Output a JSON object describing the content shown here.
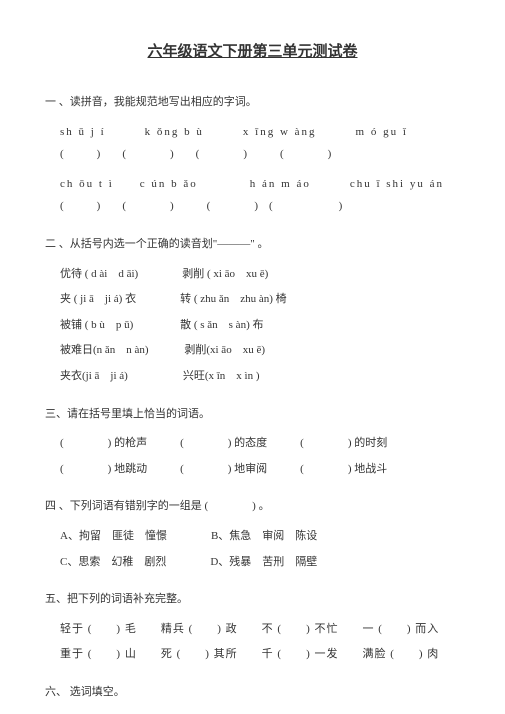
{
  "title": "六年级语文下册第三单元测试卷",
  "q1": {
    "header": "一 、读拼音，我能规范地写出相应的字词。",
    "row1_pinyin": "sh ū j í　　　k ǒng  b ù　　　x īng w àng　　　m ó  gu ǐ",
    "row1_paren": "(　　　)　　(　　　　)　　(　　　　)　　　(　　　　)",
    "row2_pinyin": "ch ōu  t ì　　c ún  b ǎo　　　　h án  m áo　　　chu ī shi yu án",
    "row2_paren": "(　　　)　　(　　　　)　　　(　　　　)　(　　　　　　)"
  },
  "q2": {
    "header": "二 、从括号内选一个正确的读音划\"———\" 。",
    "items": [
      "优待  ( d ài　d āi)　　　　剥削  ( xi āo　xu ē)",
      "夹 ( ji ā　ji á)  衣　　　　转 ( zhu ǎn　zhu àn)  椅",
      "被铺  ( b ù　p ū)　　　　 散 ( s ǎn　s àn)  布",
      "被难日(n ǎn　n àn)　　　 剥削(xi āo　xu ē)",
      "夹衣(ji ā　ji á)　　　　　兴旺(x īn　x ìn  )"
    ]
  },
  "q3": {
    "header": "三、请在括号里填上恰当的词语。",
    "rows": [
      "(　　　　)  的枪声　　　(　　　　)  的态度　　　(　　　　)  的时刻",
      "(　　　　)  地跳动　　　(　　　　)  地审阅　　　(　　　　)  地战斗"
    ]
  },
  "q4": {
    "header": "四 、下列词语有错别字的一组是  (　　　　)  。",
    "options": [
      "A、拘留　匪徒　憧憬　　　　B、焦急　审阅　陈设",
      "C、思索　幻稚　剧烈　　　　D、残暴　苦刑　隔壁"
    ]
  },
  "q5": {
    "header": "五、把下列的词语补充完整。",
    "rows": [
      "轻于  (　　)  毛　　精兵  (　　)  政　　不  (　　)  不忙　　一  (　　)  而入",
      "重于  (　　)  山　　死  (　　)  其所　　千  (　　)  一发　　满脸  (　　)  肉"
    ]
  },
  "q6": {
    "header": "六、 选词填空。"
  }
}
